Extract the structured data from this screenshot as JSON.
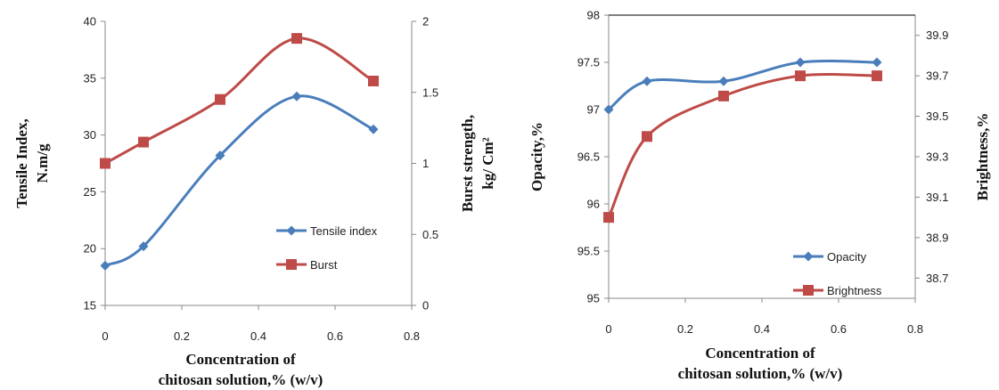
{
  "chart_data": [
    {
      "type": "line",
      "x": [
        0,
        0.1,
        0.3,
        0.5,
        0.7
      ],
      "xlim": [
        0,
        0.8
      ],
      "xticks": [
        "0",
        "0.2",
        "0.4",
        "0.6",
        "0.8"
      ],
      "xlabel_lines": [
        "Concentration of",
        "chitosan solution,% (w/v)"
      ],
      "ylabel_lines": [
        "Tensile Index,",
        "N.m/g"
      ],
      "ylim": [
        15,
        40
      ],
      "yticks": [
        "15",
        "20",
        "25",
        "30",
        "35",
        "40"
      ],
      "y2label_lines": [
        "Burst strength,",
        "kg/ Cm²"
      ],
      "y2lim": [
        0,
        2
      ],
      "y2ticks": [
        "0",
        "0.5",
        "1",
        "1.5",
        "2"
      ],
      "grid": false,
      "legend_position": "bottom-right",
      "series": [
        {
          "name": "Tensile index",
          "axis": "left",
          "color": "#4a7ebb",
          "marker": "diamond",
          "values": [
            18.5,
            20.2,
            28.2,
            33.4,
            30.5
          ]
        },
        {
          "name": "Burst",
          "axis": "right",
          "color": "#be4b48",
          "marker": "square",
          "values": [
            1.0,
            1.15,
            1.45,
            1.88,
            1.58
          ]
        }
      ]
    },
    {
      "type": "line",
      "x": [
        0,
        0.1,
        0.3,
        0.5,
        0.7
      ],
      "xlim": [
        0,
        0.8
      ],
      "xticks": [
        "0",
        "0.2",
        "0.4",
        "0.6",
        "0.8"
      ],
      "xlabel_lines": [
        "Concentration of",
        "chitosan solution,% (w/v)"
      ],
      "ylabel_lines": [
        "Opacity,%"
      ],
      "ylim": [
        95,
        98
      ],
      "yticks": [
        "95",
        "95.5",
        "96",
        "96.5",
        "97",
        "97.5",
        "98"
      ],
      "y2label_lines": [
        "Brightness,%"
      ],
      "y2lim": [
        38.6,
        40
      ],
      "y2ticks": [
        "38.7",
        "38.9",
        "39.1",
        "39.3",
        "39.5",
        "39.7",
        "39.9"
      ],
      "grid": false,
      "legend_position": "bottom-right",
      "series": [
        {
          "name": "Opacity",
          "axis": "left",
          "color": "#4a7ebb",
          "marker": "diamond",
          "values": [
            97.0,
            97.3,
            97.3,
            97.5,
            97.5
          ]
        },
        {
          "name": "Brightness",
          "axis": "right",
          "color": "#be4b48",
          "marker": "square",
          "values": [
            39.0,
            39.4,
            39.6,
            39.7,
            39.7
          ]
        }
      ]
    }
  ]
}
